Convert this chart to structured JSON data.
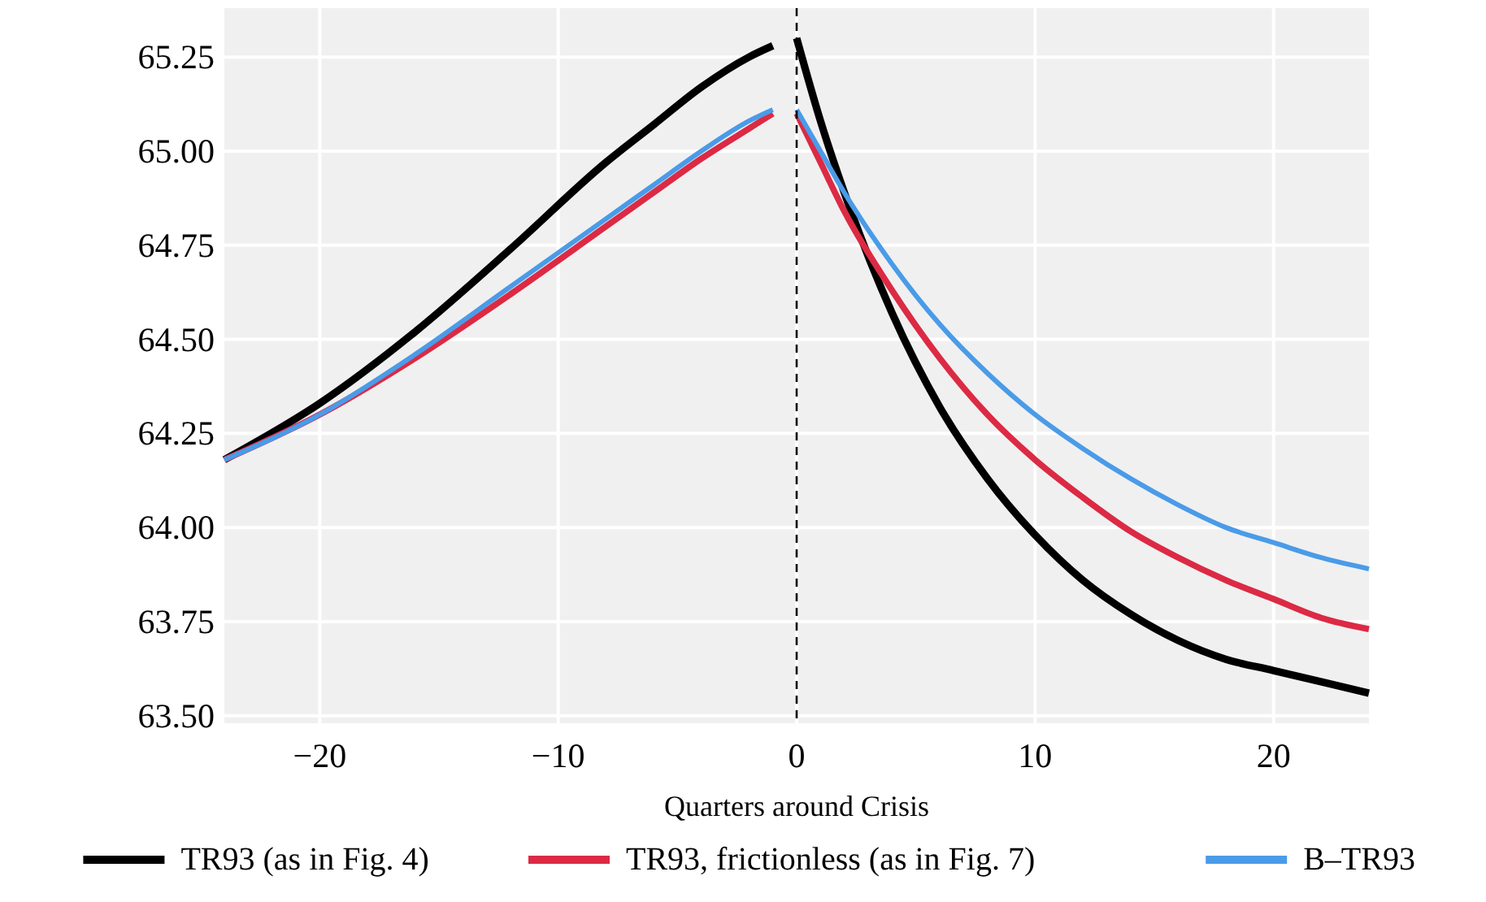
{
  "chart_data": {
    "type": "line",
    "xlabel": "Quarters around Crisis",
    "x": [
      -24,
      -20,
      -16,
      -12,
      -8,
      -6,
      -4,
      -2,
      -1,
      -0.5,
      0,
      1,
      2,
      4,
      6,
      8,
      10,
      12,
      14,
      16,
      18,
      20,
      22,
      24
    ],
    "series": [
      {
        "name": "TR93 (as in Fig. 4)",
        "color": "#000000",
        "values": [
          64.18,
          64.33,
          64.52,
          64.74,
          64.97,
          65.07,
          65.17,
          65.25,
          65.28,
          null,
          65.3,
          65.08,
          64.89,
          64.57,
          64.32,
          64.13,
          63.98,
          63.86,
          63.77,
          63.7,
          63.65,
          63.62,
          63.59,
          63.56
        ]
      },
      {
        "name": "TR93, frictionless (as in Fig. 7)",
        "color": "#dc2a44",
        "values": [
          64.18,
          64.3,
          64.45,
          64.62,
          64.8,
          64.89,
          64.98,
          65.06,
          65.1,
          null,
          65.1,
          64.97,
          64.84,
          64.63,
          64.45,
          64.3,
          64.18,
          64.08,
          63.99,
          63.92,
          63.86,
          63.81,
          63.76,
          63.73
        ]
      },
      {
        "name": "B–TR93",
        "color": "#4a9be8",
        "values": [
          64.18,
          64.3,
          64.46,
          64.64,
          64.82,
          64.91,
          65.0,
          65.08,
          65.11,
          null,
          65.11,
          65.0,
          64.89,
          64.7,
          64.54,
          64.41,
          64.3,
          64.21,
          64.13,
          64.06,
          64.0,
          63.96,
          63.92,
          63.89
        ]
      }
    ],
    "xlim": [
      -24,
      24
    ],
    "xticks": [
      {
        "value": -20,
        "label": "−20"
      },
      {
        "value": -10,
        "label": "−10"
      },
      0,
      10,
      20
    ],
    "ylim": [
      63.48,
      65.38
    ],
    "yticks": [
      {
        "value": 63.5,
        "label": "63.50"
      },
      {
        "value": 63.75,
        "label": "63.75"
      },
      {
        "value": 64,
        "label": "64.00"
      },
      {
        "value": 64.25,
        "label": "64.25"
      },
      {
        "value": 64.5,
        "label": "64.50"
      },
      {
        "value": 64.75,
        "label": "64.75"
      },
      {
        "value": 65,
        "label": "65.00"
      },
      {
        "value": 65.25,
        "label": "65.25"
      }
    ],
    "grid": true,
    "legend": "bottom",
    "line_style": "solid",
    "ref_lines": [
      {
        "axis": "x",
        "value": 0,
        "color": "#000000",
        "line_style": "dashed"
      }
    ]
  }
}
